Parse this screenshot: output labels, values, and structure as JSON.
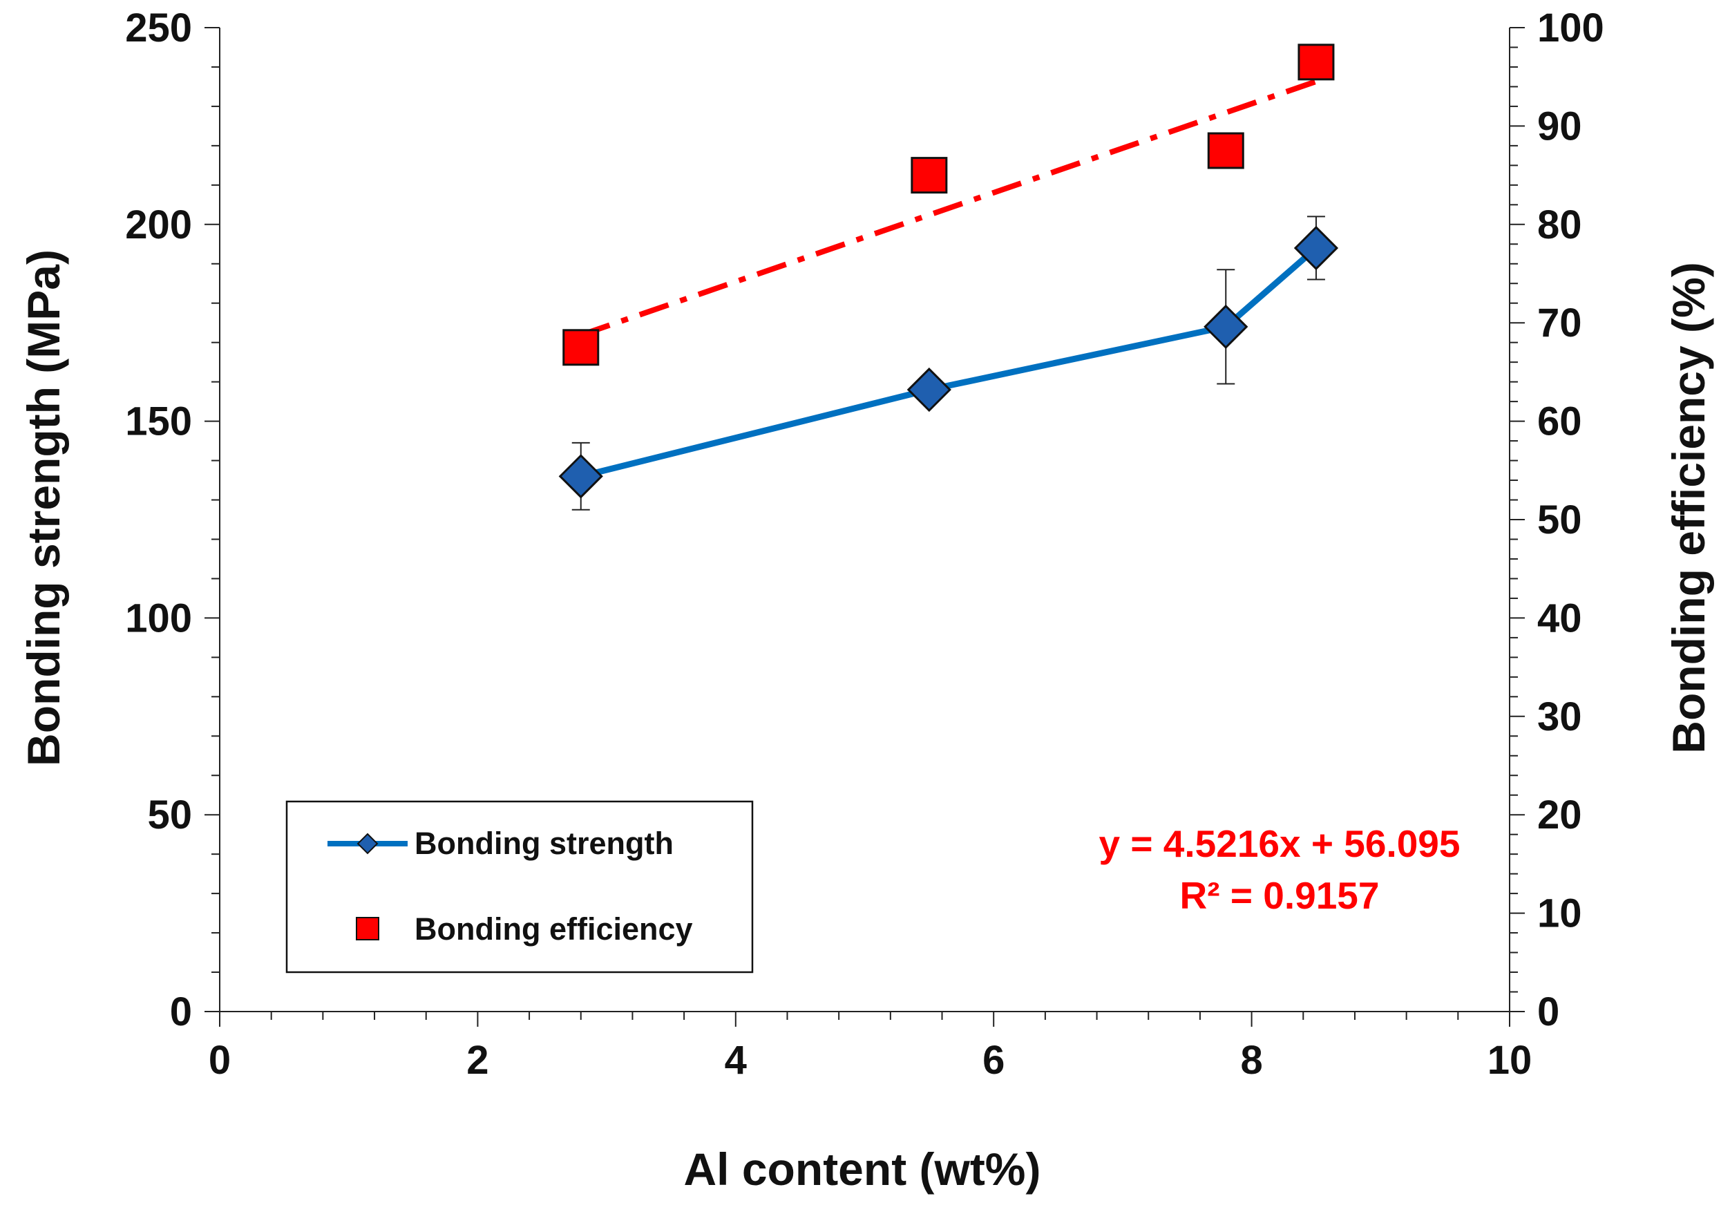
{
  "chart_data": {
    "type": "line",
    "x_axis": {
      "label": "Al content (wt%)",
      "range": [
        0,
        10
      ],
      "ticks": [
        0,
        2,
        4,
        6,
        8,
        10
      ]
    },
    "y_left": {
      "label": "Bonding strength (MPa)",
      "range": [
        0,
        250
      ],
      "ticks": [
        0,
        50,
        100,
        150,
        200,
        250
      ]
    },
    "y_right": {
      "label": "Bonding efficiency (%)",
      "range": [
        0,
        100
      ],
      "ticks": [
        0,
        10,
        20,
        30,
        40,
        50,
        60,
        70,
        80,
        90,
        100
      ]
    },
    "grid": false,
    "legend_position": "bottom-left",
    "series": [
      {
        "name": "Bonding strength",
        "axis": "left",
        "style": "line-diamond",
        "color": "#0070C0",
        "marker_color": "#1F5FAF",
        "x": [
          2.8,
          5.5,
          7.8,
          8.5
        ],
        "y": [
          136,
          158,
          174,
          194
        ],
        "error": [
          8.5,
          0,
          14.5,
          8
        ]
      },
      {
        "name": "Bonding efficiency",
        "axis": "right",
        "style": "square-marker",
        "color": "#FF0000",
        "x": [
          2.8,
          5.5,
          7.8,
          8.5
        ],
        "y": [
          67.5,
          85,
          87.5,
          96.5
        ]
      }
    ],
    "trendline": {
      "series": "Bonding efficiency",
      "axis": "right",
      "slope": 4.5216,
      "intercept": 56.095,
      "x_range": [
        2.8,
        8.5
      ],
      "color": "#FF0000",
      "style": "dash-dot",
      "equation_text": "y = 4.5216x + 56.095",
      "r2_text": "R² = 0.9157"
    }
  }
}
